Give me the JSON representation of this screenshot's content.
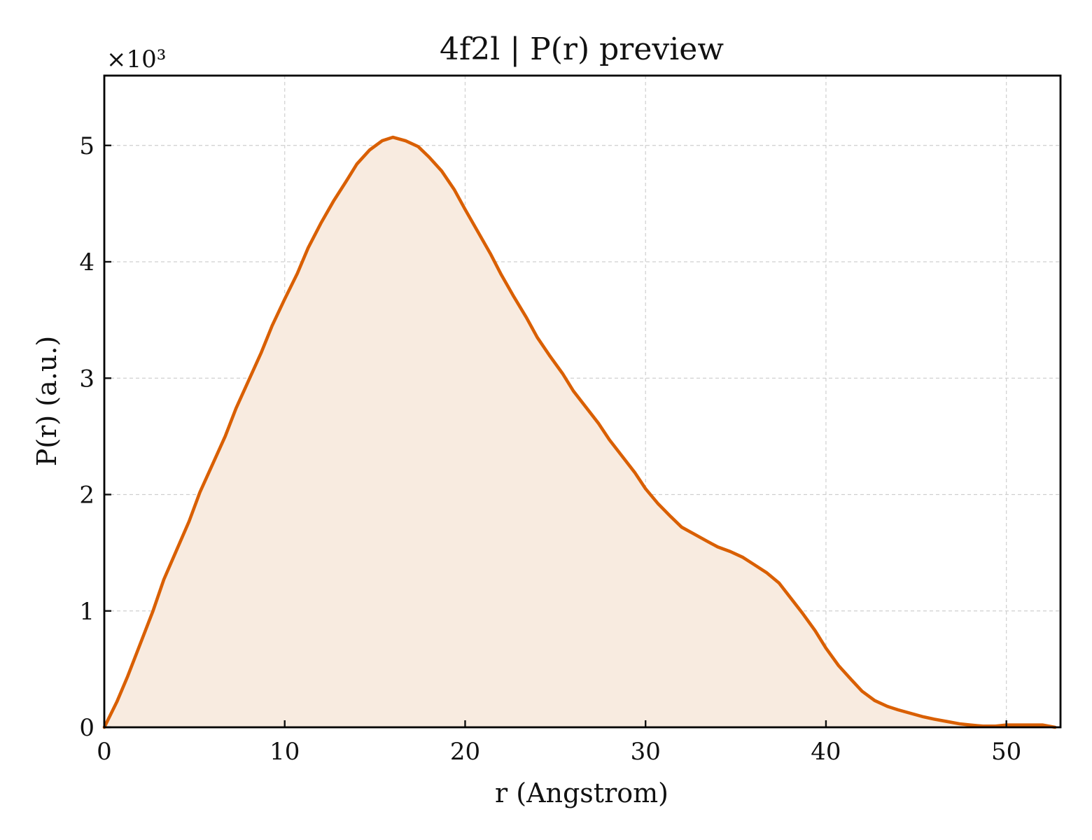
{
  "chart_data": {
    "type": "area",
    "title": "4f2l | P(r) preview",
    "xlabel": "r (Angstrom)",
    "ylabel": "P(r) (a.u.)",
    "y_scale_label": "×10³",
    "xlim": [
      0,
      53
    ],
    "ylim": [
      0,
      5.6
    ],
    "x_ticks": [
      0,
      10,
      20,
      30,
      40,
      50
    ],
    "y_ticks": [
      0,
      1,
      2,
      3,
      4,
      5
    ],
    "x_tick_labels": [
      "0",
      "10",
      "20",
      "30",
      "40",
      "50"
    ],
    "y_tick_labels": [
      "0",
      "1",
      "2",
      "3",
      "4",
      "5"
    ],
    "grid": true,
    "line_color": "#d95f02",
    "fill_color": "#f8ebe0",
    "series": [
      {
        "x": [
          0,
          0.7,
          1.3,
          2.0,
          2.7,
          3.3,
          4.0,
          4.7,
          5.3,
          6.0,
          6.7,
          7.3,
          8.0,
          8.7,
          9.3,
          10.0,
          10.7,
          11.3,
          12.0,
          12.7,
          13.4,
          14.0,
          14.7,
          15.4,
          16.0,
          16.7,
          17.4,
          18.0,
          18.7,
          19.4,
          20.0,
          20.7,
          21.4,
          22.0,
          22.7,
          23.4,
          24.0,
          24.7,
          25.4,
          26.0,
          26.7,
          27.4,
          28.0,
          28.7,
          29.4,
          30.0,
          30.7,
          31.4,
          32.0,
          32.7,
          33.4,
          34.0,
          34.7,
          35.4,
          36.0,
          36.7,
          37.4,
          38.0,
          38.7,
          39.4,
          40.0,
          40.7,
          41.4,
          42.0,
          42.7,
          43.4,
          44.0,
          44.7,
          45.4,
          46.0,
          46.7,
          47.4,
          48.0,
          48.7,
          49.4,
          50.0,
          50.7,
          51.4,
          52.0,
          52.7
        ],
        "y": [
          0,
          0.22,
          0.44,
          0.72,
          1.0,
          1.27,
          1.52,
          1.77,
          2.02,
          2.26,
          2.5,
          2.74,
          2.98,
          3.22,
          3.45,
          3.68,
          3.9,
          4.12,
          4.33,
          4.52,
          4.69,
          4.84,
          4.96,
          5.04,
          5.07,
          5.04,
          4.99,
          4.9,
          4.78,
          4.62,
          4.45,
          4.26,
          4.07,
          3.89,
          3.7,
          3.52,
          3.35,
          3.19,
          3.04,
          2.89,
          2.75,
          2.61,
          2.47,
          2.33,
          2.19,
          2.05,
          1.92,
          1.81,
          1.72,
          1.66,
          1.6,
          1.55,
          1.51,
          1.46,
          1.4,
          1.33,
          1.24,
          1.12,
          0.98,
          0.83,
          0.68,
          0.53,
          0.41,
          0.31,
          0.23,
          0.18,
          0.15,
          0.12,
          0.09,
          0.07,
          0.05,
          0.03,
          0.02,
          0.01,
          0.01,
          0.02,
          0.02,
          0.02,
          0.02,
          0.0
        ]
      }
    ]
  }
}
